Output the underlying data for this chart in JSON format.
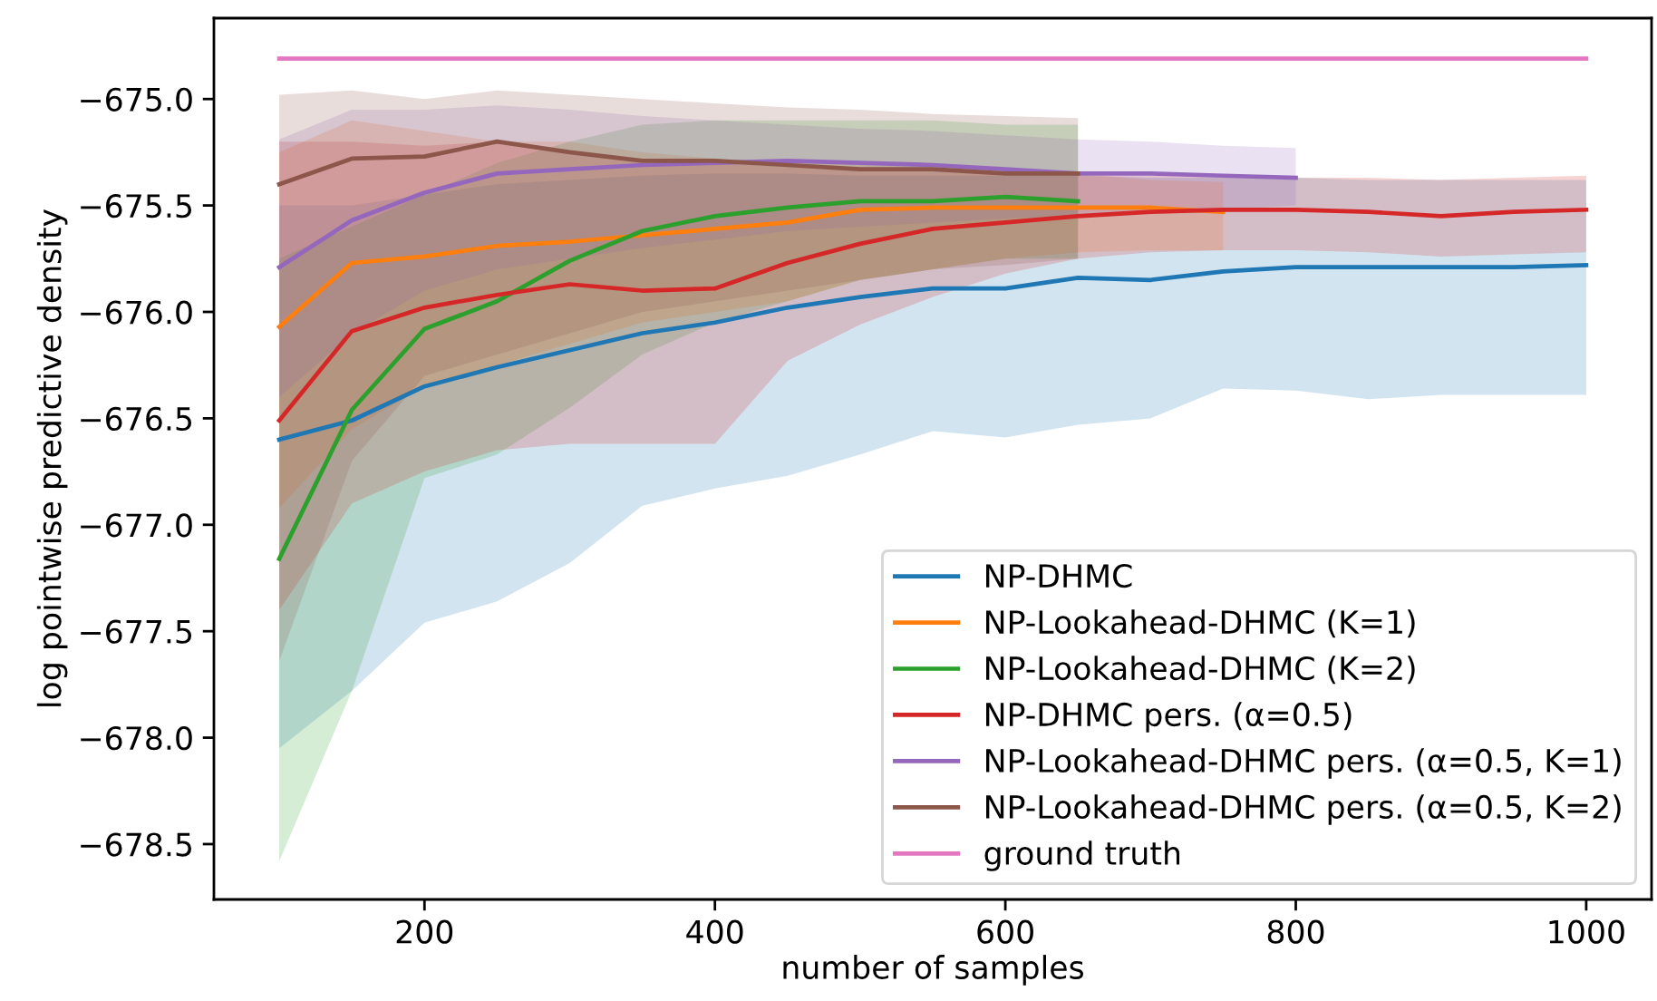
{
  "chart_data": {
    "type": "line",
    "xlabel": "number of samples",
    "ylabel": "log pointwise predictive density",
    "x": [
      100,
      150,
      200,
      250,
      300,
      350,
      400,
      450,
      500,
      550,
      600,
      650,
      700,
      750,
      800,
      850,
      900,
      950,
      1000
    ],
    "xlim": [
      55,
      1045
    ],
    "xticks": [
      200,
      400,
      600,
      800,
      1000
    ],
    "ylim": [
      -678.76,
      -674.62
    ],
    "yticks": [
      {
        "value": -678.5,
        "label": "−678.5"
      },
      {
        "value": -678.0,
        "label": "−678.0"
      },
      {
        "value": -677.5,
        "label": "−677.5"
      },
      {
        "value": -677.0,
        "label": "−677.0"
      },
      {
        "value": -676.5,
        "label": "−676.5"
      },
      {
        "value": -676.0,
        "label": "−676.0"
      },
      {
        "value": -675.5,
        "label": "−675.5"
      },
      {
        "value": -675.0,
        "label": "−675.0"
      }
    ],
    "grid": false,
    "legend": "bottom right",
    "series": [
      {
        "name": "NP-DHMC",
        "color": "#1f77b4",
        "values": [
          -676.6,
          -676.51,
          -676.35,
          -676.26,
          -676.18,
          -676.1,
          -676.05,
          -675.98,
          -675.93,
          -675.89,
          -675.89,
          -675.84,
          -675.85,
          -675.81,
          -675.79,
          -675.79,
          -675.79,
          -675.79,
          -675.78
        ],
        "lower": [
          -678.05,
          -677.78,
          -677.46,
          -677.36,
          -677.18,
          -676.91,
          -676.83,
          -676.77,
          -676.67,
          -676.56,
          -676.59,
          -676.53,
          -676.5,
          -676.36,
          -676.37,
          -676.41,
          -676.39,
          -676.39,
          -676.39
        ],
        "upper": [
          -675.5,
          -675.5,
          -675.45,
          -675.4,
          -675.38,
          -675.36,
          -675.35,
          -675.35,
          -675.36,
          -675.36,
          -675.36,
          -675.36,
          -675.37,
          -675.37,
          -675.37,
          -675.38,
          -675.38,
          -675.38,
          -675.38
        ]
      },
      {
        "name": "NP-Lookahead-DHMC (K=1)",
        "color": "#ff7f0e",
        "values": [
          -676.07,
          -675.77,
          -675.74,
          -675.69,
          -675.67,
          -675.64,
          -675.61,
          -675.58,
          -675.52,
          -675.51,
          -675.51,
          -675.51,
          -675.51,
          -675.53,
          null,
          null,
          null,
          null,
          null
        ],
        "lower": [
          -676.92,
          -676.55,
          -676.35,
          -676.25,
          -676.15,
          -676.05,
          -676.0,
          -675.95,
          -675.85,
          -675.8,
          -675.75,
          -675.72,
          -675.71,
          -675.71,
          null,
          null,
          null,
          null,
          null
        ],
        "upper": [
          -675.25,
          -675.1,
          -675.15,
          -675.2,
          -675.2,
          -675.25,
          -675.28,
          -675.3,
          -675.3,
          -675.32,
          -675.33,
          -675.35,
          -675.38,
          -675.39,
          null,
          null,
          null,
          null,
          null
        ]
      },
      {
        "name": "NP-Lookahead-DHMC (K=2)",
        "color": "#2ca02c",
        "values": [
          -677.16,
          -676.46,
          -676.08,
          -675.95,
          -675.76,
          -675.62,
          -675.55,
          -675.51,
          -675.48,
          -675.48,
          -675.46,
          -675.48,
          null,
          null,
          null,
          null,
          null,
          null,
          null
        ],
        "lower": [
          -678.58,
          -677.78,
          -676.78,
          -676.67,
          -676.45,
          -676.2,
          -676.05,
          -675.95,
          -675.85,
          -675.8,
          -675.75,
          -675.75,
          null,
          null,
          null,
          null,
          null,
          null,
          null
        ],
        "upper": [
          -675.75,
          -675.6,
          -675.45,
          -675.3,
          -675.2,
          -675.12,
          -675.1,
          -675.1,
          -675.1,
          -675.1,
          -675.12,
          -675.12,
          null,
          null,
          null,
          null,
          null,
          null,
          null
        ]
      },
      {
        "name": "NP-DHMC pers. (α=0.5)",
        "color": "#d62728",
        "values": [
          -676.51,
          -676.09,
          -675.98,
          -675.92,
          -675.87,
          -675.9,
          -675.89,
          -675.77,
          -675.68,
          -675.61,
          -675.58,
          -675.55,
          -675.53,
          -675.52,
          -675.52,
          -675.53,
          -675.55,
          -675.53,
          -675.52
        ],
        "lower": [
          -677.4,
          -676.9,
          -676.75,
          -676.65,
          -676.62,
          -676.62,
          -676.62,
          -676.23,
          -676.06,
          -675.93,
          -675.82,
          -675.75,
          -675.72,
          -675.71,
          -675.71,
          -675.72,
          -675.74,
          -675.73,
          -675.72
        ],
        "upper": [
          -675.2,
          -675.2,
          -675.22,
          -675.2,
          -675.25,
          -675.3,
          -675.3,
          -675.32,
          -675.33,
          -675.34,
          -675.35,
          -675.36,
          -675.36,
          -675.36,
          -675.37,
          -675.37,
          -675.38,
          -675.37,
          -675.36
        ]
      },
      {
        "name": "NP-Lookahead-DHMC pers. (α=0.5, K=1)",
        "color": "#9467bd",
        "values": [
          -675.79,
          -675.57,
          -675.44,
          -675.35,
          -675.33,
          -675.31,
          -675.3,
          -675.29,
          -675.3,
          -675.31,
          -675.33,
          -675.35,
          -675.35,
          -675.36,
          -675.37,
          null,
          null,
          null,
          null
        ],
        "lower": [
          -676.4,
          -676.1,
          -675.9,
          -675.8,
          -675.75,
          -675.7,
          -675.66,
          -675.62,
          -675.6,
          -675.58,
          -675.56,
          -675.55,
          -675.53,
          -675.52,
          -675.5,
          null,
          null,
          null,
          null
        ],
        "upper": [
          -675.19,
          -675.05,
          -675.05,
          -675.03,
          -675.05,
          -675.08,
          -675.1,
          -675.12,
          -675.14,
          -675.15,
          -675.17,
          -675.19,
          -675.2,
          -675.22,
          -675.23,
          null,
          null,
          null,
          null
        ]
      },
      {
        "name": "NP-Lookahead-DHMC pers. (α=0.5, K=2)",
        "color": "#8c564b",
        "values": [
          -675.4,
          -675.28,
          -675.27,
          -675.2,
          -675.25,
          -675.29,
          -675.29,
          -675.31,
          -675.33,
          -675.33,
          -675.35,
          -675.35,
          null,
          null,
          null,
          null,
          null,
          null,
          null
        ],
        "lower": [
          -677.64,
          -676.7,
          -676.3,
          -676.2,
          -676.1,
          -676.0,
          -675.95,
          -675.9,
          -675.85,
          -675.8,
          -675.78,
          -675.75,
          null,
          null,
          null,
          null,
          null,
          null,
          null
        ],
        "upper": [
          -674.98,
          -674.96,
          -675.0,
          -674.96,
          -674.98,
          -675.0,
          -675.02,
          -675.04,
          -675.05,
          -675.07,
          -675.08,
          -675.09,
          null,
          null,
          null,
          null,
          null,
          null,
          null
        ]
      },
      {
        "name": "ground truth",
        "color": "#e377c2",
        "values": [
          -674.81,
          -674.81,
          -674.81,
          -674.81,
          -674.81,
          -674.81,
          -674.81,
          -674.81,
          -674.81,
          -674.81,
          -674.81,
          -674.81,
          -674.81,
          -674.81,
          -674.81,
          -674.81,
          -674.81,
          -674.81,
          -674.81
        ]
      }
    ]
  }
}
